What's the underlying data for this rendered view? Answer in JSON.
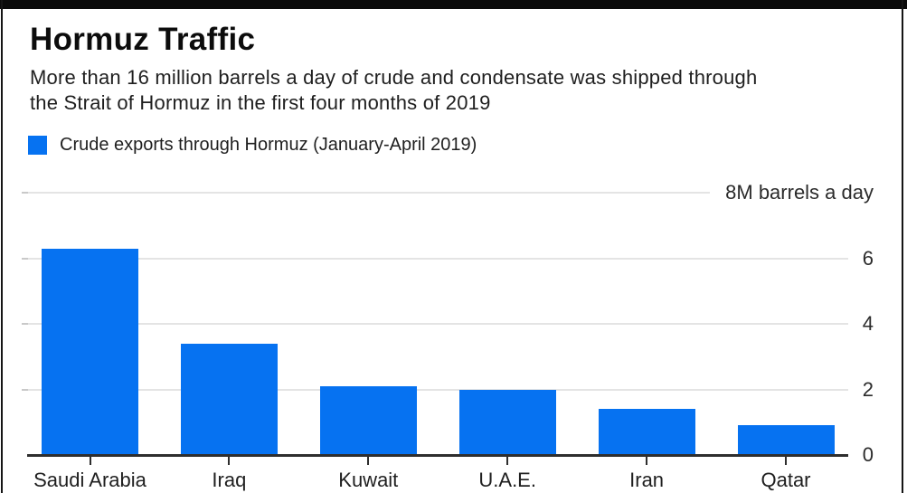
{
  "page": {
    "background": "#ffffff",
    "frame_color": "#151515",
    "top_bar_color": "#0a0a0a"
  },
  "header": {
    "title": "Hormuz Traffic",
    "subtitle": "More than 16 million barrels a day of crude and condensate was shipped through\nthe Strait of Hormuz in the first four months of 2019"
  },
  "legend": {
    "label": "Crude exports through Hormuz (January-April 2019)",
    "swatch_color": "#0672f1"
  },
  "chart_data": {
    "type": "bar",
    "title": "Hormuz Traffic",
    "subtitle": "More than 16 million barrels a day of crude and condensate was shipped through the Strait of Hormuz in the first four months of 2019",
    "series_name": "Crude exports through Hormuz (January-April 2019)",
    "categories": [
      "Saudi Arabia",
      "Iraq",
      "Kuwait",
      "U.A.E.",
      "Iran",
      "Qatar"
    ],
    "values": [
      6.3,
      3.4,
      2.1,
      2.0,
      1.4,
      0.9
    ],
    "unit_label": "8M barrels a day",
    "yticks": [
      8,
      6,
      4,
      2,
      0
    ],
    "ytick_labels": [
      "8M barrels a day",
      "6",
      "4",
      "2",
      "0"
    ],
    "ylim": [
      0,
      8
    ],
    "xlabel": "",
    "ylabel": "8M barrels a day",
    "grid": true,
    "bar_color": "#0672f1",
    "gridline_color": "#e4e4e4",
    "axis_color": "#2e2e2e",
    "legend_position": "top-left"
  }
}
